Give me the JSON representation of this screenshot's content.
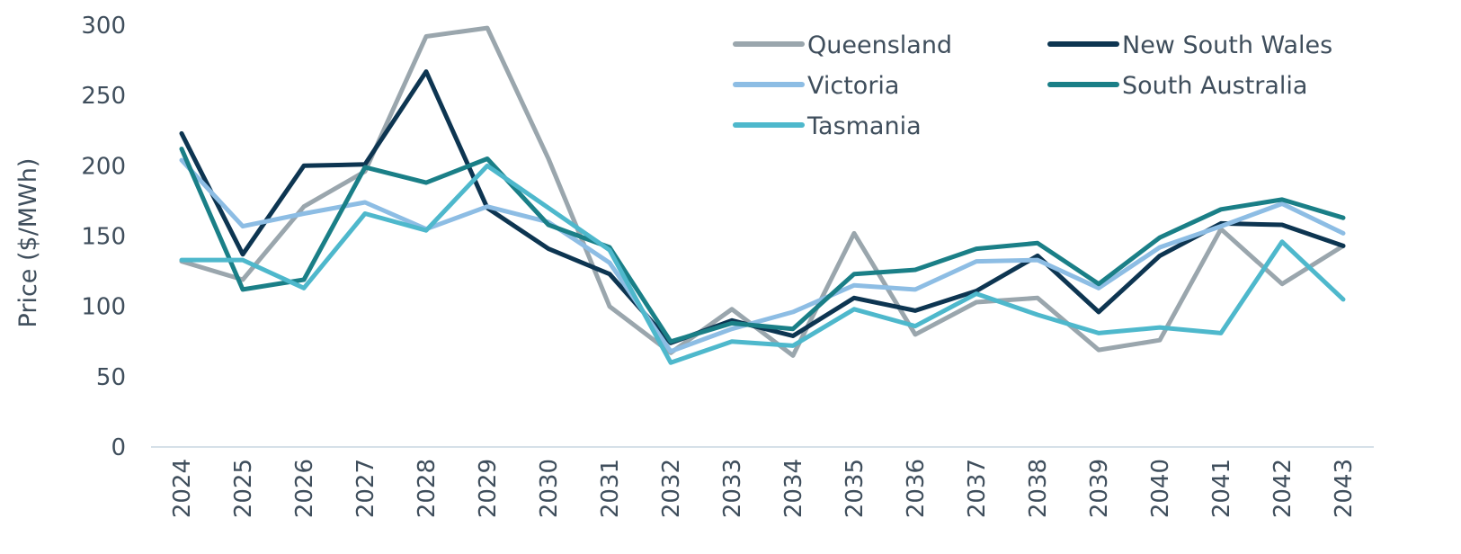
{
  "chart_data": {
    "type": "line",
    "title": "",
    "xlabel": "",
    "ylabel": "Price ($/MWh)",
    "ylim": [
      0,
      300
    ],
    "yticks": [
      0,
      50,
      100,
      150,
      200,
      250,
      300
    ],
    "grid": false,
    "legend_position": "top-right",
    "x": [
      "2024",
      "2025",
      "2026",
      "2027",
      "2028",
      "2029",
      "2030",
      "2031",
      "2032",
      "2033",
      "2034",
      "2035",
      "2036",
      "2037",
      "2038",
      "2039",
      "2040",
      "2041",
      "2042",
      "2043"
    ],
    "series": [
      {
        "name": "Queensland",
        "color": "#9aa6ad",
        "values": [
          132,
          119,
          171,
          196,
          292,
          298,
          205,
          100,
          67,
          98,
          65,
          152,
          80,
          103,
          106,
          69,
          76,
          155,
          116,
          143
        ]
      },
      {
        "name": "New South Wales",
        "color": "#0d3551",
        "values": [
          223,
          137,
          200,
          201,
          267,
          170,
          141,
          123,
          74,
          90,
          79,
          106,
          97,
          111,
          136,
          96,
          136,
          159,
          158,
          143
        ]
      },
      {
        "name": "Victoria",
        "color": "#8dbde4",
        "values": [
          204,
          157,
          166,
          174,
          155,
          171,
          160,
          131,
          68,
          84,
          96,
          115,
          112,
          132,
          133,
          113,
          142,
          157,
          173,
          152
        ]
      },
      {
        "name": "South Australia",
        "color": "#1a7f87",
        "values": [
          212,
          112,
          119,
          199,
          188,
          205,
          158,
          142,
          75,
          88,
          84,
          123,
          126,
          141,
          145,
          116,
          149,
          169,
          176,
          163
        ]
      },
      {
        "name": "Tasmania",
        "color": "#4eb8cc",
        "values": [
          133,
          133,
          113,
          166,
          154,
          200,
          170,
          140,
          60,
          75,
          72,
          98,
          86,
          109,
          94,
          81,
          85,
          81,
          146,
          105
        ]
      }
    ]
  }
}
